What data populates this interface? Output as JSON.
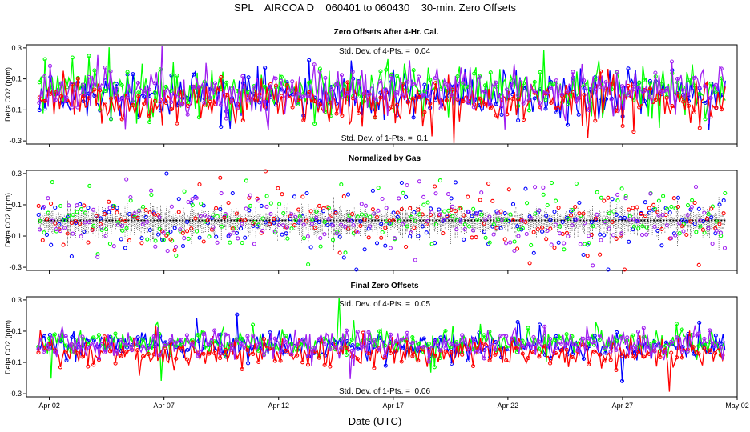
{
  "chart_data": {
    "type": "scatter",
    "title": "SPL    AIRCOA D    060401 to 060430    30-min. Zero Offsets",
    "xlabel": "Date (UTC)",
    "x_range_days": [
      0,
      31
    ],
    "x_ticks": [
      {
        "day": 1,
        "label": "Apr 02"
      },
      {
        "day": 6,
        "label": "Apr 07"
      },
      {
        "day": 11,
        "label": "Apr 12"
      },
      {
        "day": 16,
        "label": "Apr 17"
      },
      {
        "day": 21,
        "label": "Apr 22"
      },
      {
        "day": 26,
        "label": "Apr 27"
      },
      {
        "day": 31,
        "label": "May 02"
      }
    ],
    "data_range_days": [
      0.5,
      30.5
    ],
    "series_colors": [
      "#0000ff",
      "#00ff00",
      "#ff0000",
      "#a020f0"
    ],
    "mean_color": "#000000",
    "panels": [
      {
        "id": "after-cal",
        "title": "Zero Offsets After 4-Hr. Cal.",
        "ylabel": "Delta CO2 (ppm)",
        "ylim": [
          -0.32,
          0.32
        ],
        "yticks": [
          -0.3,
          -0.1,
          0.1,
          0.3
        ],
        "ytick_labels": [
          "-0.3",
          "-0.1",
          "0.1",
          "0.3"
        ],
        "annotation_top": "Std. Dev. of 4-Pts. =  0.04",
        "annotation_bottom": "Std. Dev. of 1-Pts. =  0.1",
        "series_offsets": [
          0.0,
          0.03,
          -0.05,
          0.02
        ],
        "noise": 0.075,
        "show_lines": true,
        "show_mean_band": false
      },
      {
        "id": "normalized",
        "title": "Normalized by Gas",
        "ylabel": "Delta CO2 (ppm)",
        "ylim": [
          -0.32,
          0.32
        ],
        "yticks": [
          -0.3,
          -0.1,
          0.1,
          0.3
        ],
        "ytick_labels": [
          "-0.3",
          "-0.1",
          "0.1",
          "0.3"
        ],
        "annotation_top": "",
        "annotation_bottom": "",
        "series_offsets": [
          0.0,
          0.0,
          0.0,
          0.0
        ],
        "noise": 0.11,
        "show_lines": false,
        "show_mean_band": true
      },
      {
        "id": "final",
        "title": "Final Zero Offsets",
        "ylabel": "Delta CO2 (ppm)",
        "ylim": [
          -0.32,
          0.32
        ],
        "yticks": [
          -0.3,
          -0.1,
          0.1,
          0.3
        ],
        "ytick_labels": [
          "-0.3",
          "-0.1",
          "0.1",
          "0.3"
        ],
        "annotation_top": "Std. Dev. of 4-Pts. =  0.05",
        "annotation_bottom": "Std. Dev. of 1-Pts. =  0.06",
        "series_offsets": [
          0.01,
          0.03,
          -0.04,
          0.02
        ],
        "noise": 0.045,
        "show_lines": true,
        "show_mean_band": false
      }
    ]
  }
}
